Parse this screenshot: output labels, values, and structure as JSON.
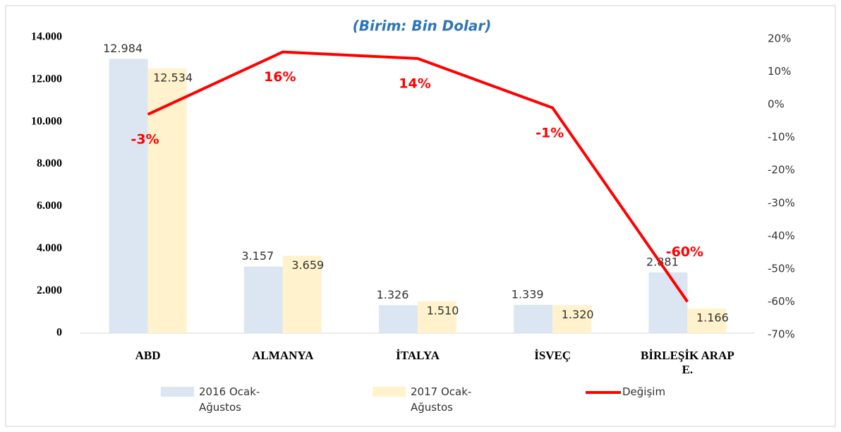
{
  "chart_data": {
    "type": "bar_line",
    "subtitle": "(Birim: Bin Dolar)",
    "categories": [
      "ABD",
      "ALMANYA",
      "İTALYA",
      "İSVEÇ",
      "BİRLEŞİK ARAP E."
    ],
    "series": [
      {
        "name": "2016 Ocak-Ağustos",
        "type": "bar",
        "color": "#dce6f2",
        "values": [
          12984,
          3157,
          1326,
          1339,
          2881
        ],
        "value_labels": [
          "12.984",
          "3.157",
          "1.326",
          "1.339",
          "2.881"
        ]
      },
      {
        "name": "2017 Ocak-Ağustos",
        "type": "bar",
        "color": "#fff2cc",
        "values": [
          12534,
          3659,
          1510,
          1320,
          1166
        ],
        "value_labels": [
          "12.534",
          "3.659",
          "1.510",
          "1.320",
          "1.166"
        ]
      },
      {
        "name": "Değişim",
        "type": "line",
        "axis": "y2",
        "color": "#ff0000",
        "values": [
          -3,
          16,
          14,
          -1,
          -60
        ],
        "value_labels": [
          "-3%",
          "16%",
          "14%",
          "-1%",
          "-60%"
        ]
      }
    ],
    "ylim": [
      0,
      14000
    ],
    "yticks": [
      0,
      {
        "value": 2000,
        "label": "2.000"
      },
      {
        "value": 4000,
        "label": "4.000"
      },
      {
        "value": 6000,
        "label": "6.000"
      },
      {
        "value": 8000,
        "label": "8.000"
      },
      {
        "value": 10000,
        "label": "10.000"
      },
      {
        "value": 12000,
        "label": "12.000"
      },
      {
        "value": 14000,
        "label": "14.000"
      }
    ],
    "y2lim": [
      -70,
      20
    ],
    "y2ticks": [
      {
        "value": -70,
        "label": "-70%"
      },
      {
        "value": -60,
        "label": "-60%"
      },
      {
        "value": -50,
        "label": "-50%"
      },
      {
        "value": -40,
        "label": "-40%"
      },
      {
        "value": -30,
        "label": "-30%"
      },
      {
        "value": -20,
        "label": "-20%"
      },
      {
        "value": -10,
        "label": "-10%"
      },
      {
        "value": 0,
        "label": "0%"
      },
      {
        "value": 10,
        "label": "10%"
      },
      {
        "value": 20,
        "label": "20%"
      }
    ],
    "grid": false
  }
}
